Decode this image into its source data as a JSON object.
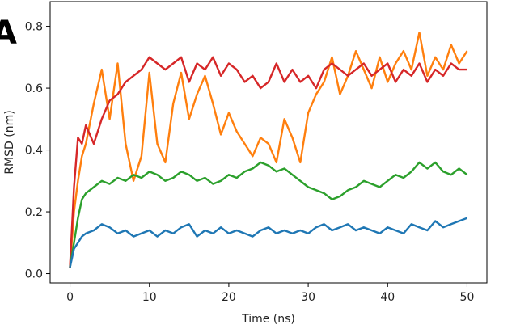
{
  "chart_data": {
    "type": "line",
    "panel_label": "A",
    "xlabel": "Time (ns)",
    "ylabel": "RMSD (nm)",
    "xlim": [
      -2.5,
      52.5
    ],
    "ylim": [
      -0.03,
      0.88
    ],
    "xticks": [
      0,
      10,
      20,
      30,
      40,
      50
    ],
    "yticks": [
      0.0,
      0.2,
      0.4,
      0.6,
      0.8
    ],
    "ytick_labels": [
      "0.0",
      "0.2",
      "0.4",
      "0.6",
      "0.8"
    ],
    "grid": false,
    "legend": "none",
    "series": [
      {
        "color": "#ff7f0e",
        "x": [
          0,
          0.5,
          1,
          1.5,
          2,
          3,
          4,
          5,
          6,
          7,
          8,
          9,
          10,
          11,
          12,
          13,
          14,
          15,
          16,
          17,
          18,
          19,
          20,
          21,
          22,
          23,
          24,
          25,
          26,
          27,
          28,
          29,
          30,
          31,
          32,
          33,
          34,
          35,
          36,
          37,
          38,
          39,
          40,
          41,
          42,
          43,
          44,
          45,
          46,
          47,
          48,
          49,
          50
        ],
        "y": [
          0.02,
          0.2,
          0.3,
          0.38,
          0.42,
          0.55,
          0.66,
          0.5,
          0.68,
          0.42,
          0.3,
          0.38,
          0.65,
          0.42,
          0.36,
          0.55,
          0.65,
          0.5,
          0.58,
          0.64,
          0.55,
          0.45,
          0.52,
          0.46,
          0.42,
          0.38,
          0.44,
          0.42,
          0.36,
          0.5,
          0.44,
          0.36,
          0.52,
          0.58,
          0.62,
          0.7,
          0.58,
          0.64,
          0.72,
          0.66,
          0.6,
          0.7,
          0.62,
          0.68,
          0.72,
          0.66,
          0.78,
          0.64,
          0.7,
          0.66,
          0.74,
          0.68,
          0.72
        ]
      },
      {
        "color": "#d62728",
        "x": [
          0,
          0.5,
          1,
          1.5,
          2,
          3,
          4,
          5,
          6,
          7,
          8,
          9,
          10,
          11,
          12,
          13,
          14,
          15,
          16,
          17,
          18,
          19,
          20,
          21,
          22,
          23,
          24,
          25,
          26,
          27,
          28,
          29,
          30,
          31,
          32,
          33,
          34,
          35,
          36,
          37,
          38,
          39,
          40,
          41,
          42,
          43,
          44,
          45,
          46,
          47,
          48,
          49,
          50
        ],
        "y": [
          0.02,
          0.28,
          0.44,
          0.42,
          0.48,
          0.42,
          0.5,
          0.56,
          0.58,
          0.62,
          0.64,
          0.66,
          0.7,
          0.68,
          0.66,
          0.68,
          0.7,
          0.62,
          0.68,
          0.66,
          0.7,
          0.64,
          0.68,
          0.66,
          0.62,
          0.64,
          0.6,
          0.62,
          0.68,
          0.62,
          0.66,
          0.62,
          0.64,
          0.6,
          0.66,
          0.68,
          0.66,
          0.64,
          0.66,
          0.68,
          0.64,
          0.66,
          0.68,
          0.62,
          0.66,
          0.64,
          0.68,
          0.62,
          0.66,
          0.64,
          0.68,
          0.66,
          0.66
        ]
      },
      {
        "color": "#2ca02c",
        "x": [
          0,
          0.5,
          1,
          1.5,
          2,
          3,
          4,
          5,
          6,
          7,
          8,
          9,
          10,
          11,
          12,
          13,
          14,
          15,
          16,
          17,
          18,
          19,
          20,
          21,
          22,
          23,
          24,
          25,
          26,
          27,
          28,
          29,
          30,
          31,
          32,
          33,
          34,
          35,
          36,
          37,
          38,
          39,
          40,
          41,
          42,
          43,
          44,
          45,
          46,
          47,
          48,
          49,
          50
        ],
        "y": [
          0.02,
          0.1,
          0.18,
          0.24,
          0.26,
          0.28,
          0.3,
          0.29,
          0.31,
          0.3,
          0.32,
          0.31,
          0.33,
          0.32,
          0.3,
          0.31,
          0.33,
          0.32,
          0.3,
          0.31,
          0.29,
          0.3,
          0.32,
          0.31,
          0.33,
          0.34,
          0.36,
          0.35,
          0.33,
          0.34,
          0.32,
          0.3,
          0.28,
          0.27,
          0.26,
          0.24,
          0.25,
          0.27,
          0.28,
          0.3,
          0.29,
          0.28,
          0.3,
          0.32,
          0.31,
          0.33,
          0.36,
          0.34,
          0.36,
          0.33,
          0.32,
          0.34,
          0.32
        ]
      },
      {
        "color": "#1f77b4",
        "x": [
          0,
          0.5,
          1,
          1.5,
          2,
          3,
          4,
          5,
          6,
          7,
          8,
          9,
          10,
          11,
          12,
          13,
          14,
          15,
          16,
          17,
          18,
          19,
          20,
          21,
          22,
          23,
          24,
          25,
          26,
          27,
          28,
          29,
          30,
          31,
          32,
          33,
          34,
          35,
          36,
          37,
          38,
          39,
          40,
          41,
          42,
          43,
          44,
          45,
          46,
          47,
          48,
          49,
          50
        ],
        "y": [
          0.02,
          0.08,
          0.1,
          0.12,
          0.13,
          0.14,
          0.16,
          0.15,
          0.13,
          0.14,
          0.12,
          0.13,
          0.14,
          0.12,
          0.14,
          0.13,
          0.15,
          0.16,
          0.12,
          0.14,
          0.13,
          0.15,
          0.13,
          0.14,
          0.13,
          0.12,
          0.14,
          0.15,
          0.13,
          0.14,
          0.13,
          0.14,
          0.13,
          0.15,
          0.16,
          0.14,
          0.15,
          0.16,
          0.14,
          0.15,
          0.14,
          0.13,
          0.15,
          0.14,
          0.13,
          0.16,
          0.15,
          0.14,
          0.17,
          0.15,
          0.16,
          0.17,
          0.18
        ]
      }
    ]
  }
}
